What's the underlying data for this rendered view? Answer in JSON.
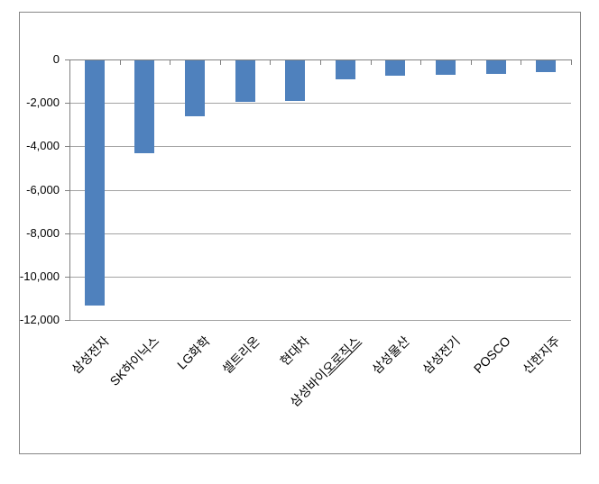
{
  "chart_data": {
    "type": "bar",
    "title": "",
    "xlabel": "",
    "ylabel": "",
    "categories": [
      "삼성전자",
      "SK하이닉스",
      "LG화학",
      "셀트리온",
      "현대차",
      "삼성바이오로직스",
      "삼성물산",
      "삼성전기",
      "POSCO",
      "신한지주"
    ],
    "values": [
      -11300,
      -4260,
      -2570,
      -1900,
      -1860,
      -890,
      -720,
      -650,
      -630,
      -540
    ],
    "ylim": [
      -12000,
      0
    ],
    "ytick_interval": 2000,
    "ytick_labels": [
      "0",
      "-2,000",
      "-4,000",
      "-6,000",
      "-8,000",
      "-10,000",
      "-12,000"
    ],
    "grid": true,
    "legend": false,
    "bar_color": "#4F81BD",
    "label_underline": {
      "index": 5,
      "suffix": "오로직스"
    }
  },
  "colors": {
    "background": "#FFFFFF",
    "plot_background": "#FFFFFF",
    "frame_border": "#868686",
    "axis": "#808080",
    "gridline": "#A3A3A3",
    "text": "#000000"
  }
}
